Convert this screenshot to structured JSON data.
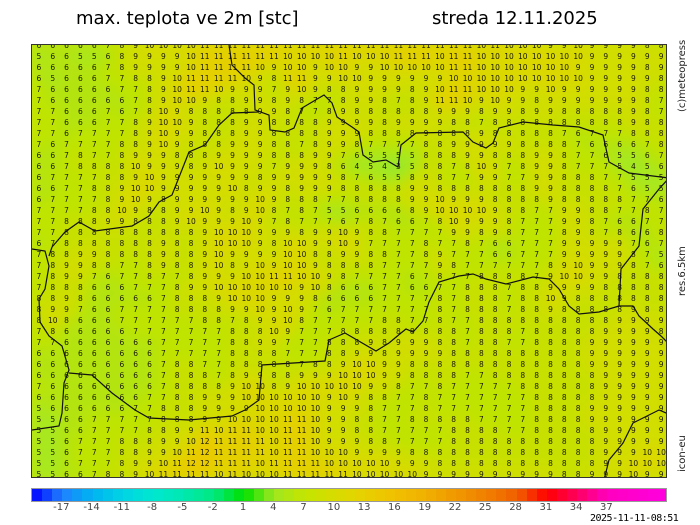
{
  "header": {
    "title": "max. teplota ve 2m [stc]",
    "date": "streda 12.11.2025"
  },
  "side_labels": {
    "copyright": "(c)meteopress",
    "resolution": "res.6.5km",
    "model": "icon-eu"
  },
  "timestamp": "2025-11-11-08:51",
  "colorbar": {
    "min": -20,
    "max": 43,
    "ticks": [
      "-17",
      "-14",
      "-11",
      "-8",
      "-5",
      "-2",
      "1",
      "4",
      "7",
      "10",
      "13",
      "16",
      "19",
      "22",
      "25",
      "28",
      "31",
      "34",
      "37"
    ],
    "stops": [
      {
        "v": -20,
        "c": "#0000ff"
      },
      {
        "v": -17,
        "c": "#2080ff"
      },
      {
        "v": -14,
        "c": "#00b4f0"
      },
      {
        "v": -11,
        "c": "#00d4e4"
      },
      {
        "v": -8,
        "c": "#00e8d0"
      },
      {
        "v": -5,
        "c": "#00e8b0"
      },
      {
        "v": -2,
        "c": "#00e880"
      },
      {
        "v": 1,
        "c": "#00e000"
      },
      {
        "v": 4,
        "c": "#a0e820"
      },
      {
        "v": 7,
        "c": "#c4e400"
      },
      {
        "v": 10,
        "c": "#d8dc00"
      },
      {
        "v": 13,
        "c": "#e8d000"
      },
      {
        "v": 16,
        "c": "#f0c000"
      },
      {
        "v": 19,
        "c": "#f0b000"
      },
      {
        "v": 22,
        "c": "#f09800"
      },
      {
        "v": 25,
        "c": "#f08000"
      },
      {
        "v": 28,
        "c": "#f06000"
      },
      {
        "v": 31,
        "c": "#ff0000"
      },
      {
        "v": 34,
        "c": "#ff0060"
      },
      {
        "v": 37,
        "c": "#ff00c0"
      },
      {
        "v": 43,
        "c": "#ff00e0"
      }
    ]
  },
  "map": {
    "value_colors": {
      "3": "#8ee830",
      "4": "#9ce828",
      "5": "#a8e820",
      "6": "#b4e410",
      "7": "#bfe400",
      "8": "#c8e000",
      "9": "#d2dd00",
      "10": "#dbd800",
      "11": "#e4d000",
      "12": "#ecc800"
    },
    "grid": [
      "6 6 6 6 6 7 8 9 10 10 10 10 11 11 11 11 11 11 11 11 11 11 11 11 11 11 11 11 11 11 11 11 10 11 10 10 10 9 9 10 9 9 9 9 8 8",
      "5 6 6 5 5 6 8 9 9 9 9 10 11 11 11 11 11 11 10 10 10 10 11 10 10 10 11 11 11 10 11 11 10 10 10 10 10 10 10 10 9 9 9 9 9 9",
      "6 6 6 6 6 7 8 9 9 9 9 10 11 11 11 11 10 9 10 10 9 10 10 9 9 10 10 10 10 10 11 11 10 10 10 10 10 10 10 9 9 9 9 9 8 9",
      "6 5 6 6 6 7 7 8 8 9 10 11 11 11 11 10 9 8 11 11 9 9 10 10 9 9 9 9 9 9 10 10 10 10 10 10 10 10 10 10 9 9 9 9 9 8",
      "7 6 6 6 6 6 7 7 8 9 10 11 11 10 9 9 9 7 9 10 9 8 8 9 9 9 9 8 9 10 11 11 10 10 10 9 9 10 9 9 9 9 9 9 8 8",
      "7 6 6 6 6 6 6 7 8 9 10 10 9 8 8 9 9 8 9 8 7 7 8 9 9 8 7 8 9 11 11 10 9 10 9 9 8 9 9 9 9 9 9 9 8 7",
      "7 7 6 6 6 7 6 7 8 10 9 8 8 8 8 8 9 9 8 7 7 8 9 8 8 8 8 8 8 9 9 9 8 9 9 8 9 9 8 8 8 8 8 9 8 7",
      "7 7 6 6 6 7 7 8 9 10 10 9 8 8 8 9 9 8 8 8 8 9 9 9 9 8 9 9 9 9 8 8 7 8 8 8 8 8 8 8 8 8 8 9 8 8",
      "7 7 6 7 7 7 7 8 9 10 9 9 8 8 8 9 9 8 8 8 8 9 9 9 8 8 8 8 9 8 8 8 9 8 8 8 8 8 7 6 7 7 7 8 8 8",
      "7 6 7 7 7 7 8 8 9 10 9 8 8 8 9 9 9 8 8 7 8 9 9 8 7 7 7 7 8 8 9 9 9 9 9 8 8 8 8 7 6 6 6 6 7 8",
      "6 6 7 8 7 7 8 9 9 9 8 8 8 9 9 9 9 8 8 8 9 9 7 6 5 5 5 5 8 8 8 9 9 8 8 8 9 9 8 7 7 6 5 5 6 7",
      "6 6 7 8 8 8 8 10 9 9 9 8 9 10 9 9 9 7 9 9 9 8 6 4 5 4 3 5 8 8 7 8 10 9 7 8 9 9 8 7 7 7 5 4 5 6",
      "6 7 7 7 7 8 8 9 10 9 9 9 9 9 9 9 8 9 9 9 9 9 8 7 6 5 5 8 9 8 7 7 9 9 7 7 9 9 8 8 8 7 7 5 5 5",
      "6 6 7 7 8 8 9 10 10 9 9 9 9 9 10 8 9 9 8 9 9 9 8 8 8 8 8 9 9 8 8 8 8 8 8 8 9 9 8 8 8 8 7 6 5 5",
      "6 7 7 7 7 8 9 10 9 8 9 9 9 9 9 9 10 9 8 8 8 7 7 8 8 8 8 9 9 10 9 9 9 8 8 8 8 9 8 8 8 8 8 7 7 6",
      "7 7 7 7 8 8 10 9 8 8 9 9 10 9 8 9 10 8 7 8 7 5 5 6 6 6 6 8 9 10 10 10 10 9 8 8 7 7 9 9 8 8 7 7 8 7",
      "7 7 8 8 8 9 9 8 8 8 9 10 9 9 9 10 9 7 8 7 7 7 6 7 8 7 6 6 7 8 10 9 9 9 8 7 7 7 9 9 8 7 6 6 7 7",
      "7 7 8 8 8 8 8 8 8 8 8 8 9 10 10 10 9 9 9 8 9 9 10 9 8 8 7 7 7 7 9 9 8 9 8 7 7 7 8 9 8 7 8 6 6 8",
      "6 7 8 8 8 8 8 8 8 9 8 8 9 10 10 10 9 8 10 10 9 9 10 9 7 7 7 7 8 7 7 8 7 6 6 7 7 7 9 9 9 9 9 7 6 7",
      "7 8 8 9 9 8 8 8 8 9 8 8 9 10 9 9 9 9 10 10 8 8 9 9 8 8 7 7 8 9 7 7 7 6 6 7 7 7 9 9 9 9 9 8 7 5",
      "7 8 9 9 8 8 7 7 8 9 8 8 9 10 8 9 10 9 10 10 9 8 8 8 8 7 7 7 7 9 8 7 7 7 7 7 7 8 9 10 9 9 9 8 7 6",
      "7 8 9 9 7 6 7 7 8 7 7 8 9 9 9 10 10 11 11 10 10 9 8 7 7 7 7 6 7 8 7 7 8 8 8 8 7 9 10 10 9 9 8 8 8 8",
      "7 8 8 8 6 6 6 7 7 7 8 9 9 10 10 10 10 10 10 9 10 8 6 6 6 7 7 6 6 7 7 8 8 8 7 8 8 9 9 9 9 8 8 8 8 8",
      "8 8 9 8 6 6 6 6 6 7 8 8 8 9 10 10 10 9 9 9 8 6 6 6 6 7 7 7 7 8 7 8 8 8 7 8 8 10 9 8 8 8 8 8 8 8",
      "8 9 9 7 6 6 7 7 7 7 8 8 8 8 9 9 10 9 10 9 7 6 7 7 7 7 7 7 7 8 7 8 8 8 7 8 8 9 8 8 8 8 8 9 8 8",
      "8 10 8 6 6 6 7 7 7 7 7 7 8 8 7 8 9 9 10 8 7 7 7 7 7 8 8 7 7 8 7 7 8 8 8 8 8 8 8 8 8 8 9 9 9 9",
      "7 8 6 6 6 6 6 7 7 7 7 7 7 7 8 8 8 10 9 7 7 7 8 8 8 8 8 8 8 8 8 7 8 8 8 7 8 8 8 8 8 9 9 9 9 8",
      "7 7 6 6 6 6 6 6 6 7 7 7 7 7 8 8 9 9 7 7 7 8 8 8 9 8 9 9 9 8 8 7 8 8 7 7 8 8 8 8 9 9 9 9 9 9",
      "6 6 6 6 6 6 6 6 6 7 7 7 7 7 8 8 8 8 7 7 7 8 8 9 9 8 9 9 9 9 8 8 8 8 8 8 8 8 8 8 9 9 9 9 9 9",
      "6 6 6 6 6 6 6 6 6 7 8 8 7 7 8 8 8 8 8 7 8 8 9 10 10 9 9 8 8 8 8 8 8 8 8 8 8 8 8 8 9 9 9 9 9 9",
      "6 6 6 6 6 6 6 6 6 7 8 8 8 7 8 9 9 8 8 9 9 9 10 10 10 9 9 8 8 8 8 7 7 8 8 8 8 8 8 8 8 9 9 9 9 9",
      "7 6 6 6 6 6 6 6 6 7 8 8 8 8 9 10 10 8 9 10 10 10 10 10 9 9 8 7 7 8 7 7 7 7 7 8 8 8 8 8 8 9 9 9 9 9",
      "6 6 6 6 6 6 6 6 7 7 8 8 9 9 9 10 10 10 10 10 10 9 10 9 8 8 7 7 8 7 7 7 7 7 7 7 8 8 8 8 8 9 9 9 9 9",
      "5 6 6 6 6 6 6 7 7 8 8 8 9 9 9 9 10 10 10 10 10 9 9 9 8 7 7 7 8 7 7 7 7 7 7 7 8 8 8 8 9 9 9 9 9 9",
      "5 5 6 6 7 7 7 7 7 8 8 8 9 9 10 10 10 10 11 11 10 9 9 8 8 7 7 8 8 8 8 8 7 7 7 7 8 8 8 8 9 9 9 9 9 9",
      "5 5 6 6 7 7 7 7 8 8 9 9 11 10 11 11 10 10 11 11 10 9 9 8 8 7 7 7 7 7 8 8 8 8 7 7 8 8 8 8 8 9 9 9 9 9",
      "5 5 6 7 7 7 8 8 8 9 9 10 12 11 11 11 11 10 11 11 10 9 9 9 8 8 7 7 7 7 8 8 8 8 8 8 8 8 8 8 8 9 9 9 9 9",
      "5 5 6 7 7 7 8 8 9 9 10 11 12 11 11 11 11 10 11 11 10 10 10 9 9 9 9 8 8 8 8 8 8 8 8 8 8 8 8 8 8 9 9 9 10 10",
      "5 5 6 7 7 7 8 9 9 10 11 12 12 11 11 11 10 11 11 11 11 10 10 10 10 10 9 9 9 8 8 8 8 8 8 8 8 8 8 8 8 9 9 10 10 10",
      "5 5 6 6 7 8 8 9 10 11 11 11 11 10 11 10 10 10 11 11 11 11 11 10 10 10 10 10 9 9 9 9 9 9 9 9 9 9 8 8 9 9 9 10 9 9"
    ]
  }
}
